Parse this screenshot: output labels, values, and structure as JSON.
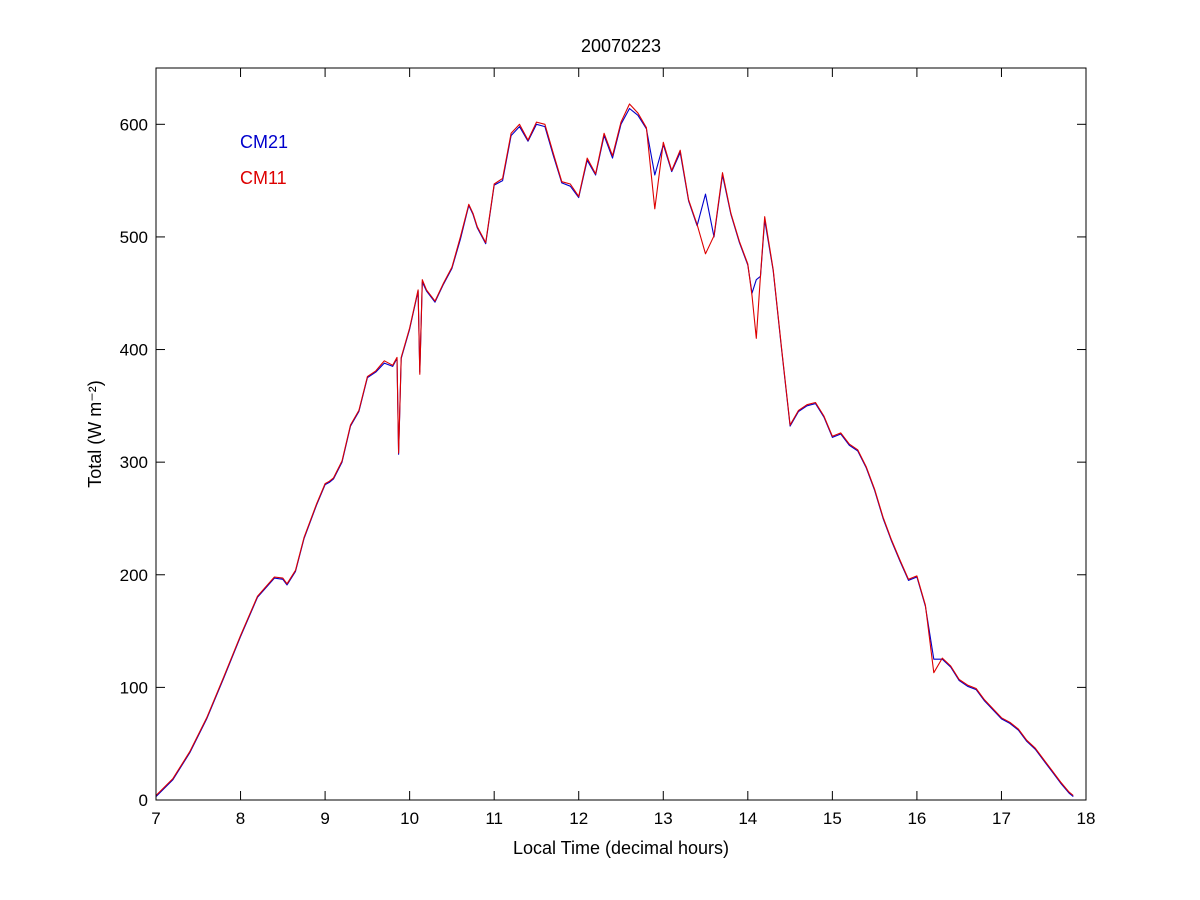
{
  "chart_data": {
    "type": "line",
    "title": "20070223",
    "xlabel": "Local Time (decimal hours)",
    "ylabel": "Total (W m⁻²)",
    "xlim": [
      7,
      18
    ],
    "ylim": [
      0,
      650
    ],
    "xticks": [
      7,
      8,
      9,
      10,
      11,
      12,
      13,
      14,
      15,
      16,
      17,
      18
    ],
    "yticks": [
      0,
      100,
      200,
      300,
      400,
      500,
      600
    ],
    "xtick_labels": [
      "7",
      "8",
      "9",
      "10",
      "11",
      "12",
      "13",
      "14",
      "15",
      "16",
      "17",
      "18"
    ],
    "ytick_labels": [
      "0",
      "100",
      "200",
      "300",
      "400",
      "500",
      "600"
    ],
    "grid": false,
    "legend_position": "top-left",
    "series": [
      {
        "name": "CM21",
        "color": "#0000cc",
        "x": [
          7.0,
          7.2,
          7.4,
          7.6,
          7.8,
          8.0,
          8.2,
          8.4,
          8.5,
          8.55,
          8.65,
          8.75,
          8.9,
          9.0,
          9.05,
          9.1,
          9.2,
          9.3,
          9.4,
          9.5,
          9.6,
          9.7,
          9.8,
          9.85,
          9.87,
          9.9,
          10.0,
          10.1,
          10.12,
          10.15,
          10.2,
          10.3,
          10.4,
          10.5,
          10.6,
          10.7,
          10.75,
          10.8,
          10.9,
          11.0,
          11.1,
          11.2,
          11.3,
          11.4,
          11.5,
          11.6,
          11.7,
          11.8,
          11.9,
          12.0,
          12.1,
          12.2,
          12.3,
          12.4,
          12.5,
          12.6,
          12.7,
          12.8,
          12.9,
          13.0,
          13.1,
          13.2,
          13.3,
          13.4,
          13.5,
          13.6,
          13.7,
          13.8,
          13.9,
          14.0,
          14.05,
          14.1,
          14.15,
          14.2,
          14.3,
          14.4,
          14.5,
          14.6,
          14.7,
          14.8,
          14.9,
          15.0,
          15.1,
          15.2,
          15.3,
          15.4,
          15.5,
          15.6,
          15.7,
          15.8,
          15.9,
          16.0,
          16.1,
          16.2,
          16.3,
          16.4,
          16.5,
          16.6,
          16.7,
          16.8,
          16.9,
          17.0,
          17.1,
          17.2,
          17.3,
          17.4,
          17.5,
          17.6,
          17.7,
          17.8,
          17.85
        ],
        "values": [
          3,
          18,
          42,
          72,
          108,
          145,
          180,
          197,
          196,
          191,
          203,
          232,
          262,
          280,
          282,
          285,
          300,
          332,
          345,
          375,
          380,
          388,
          385,
          392,
          307,
          392,
          418,
          452,
          380,
          460,
          452,
          442,
          458,
          472,
          498,
          528,
          520,
          508,
          494,
          546,
          550,
          590,
          598,
          585,
          600,
          598,
          572,
          548,
          545,
          535,
          568,
          555,
          590,
          570,
          600,
          614,
          608,
          596,
          555,
          582,
          558,
          575,
          532,
          510,
          538,
          500,
          555,
          520,
          495,
          475,
          450,
          462,
          465,
          515,
          470,
          400,
          332,
          345,
          350,
          352,
          340,
          322,
          325,
          315,
          310,
          295,
          275,
          250,
          230,
          212,
          195,
          198,
          172,
          125,
          125,
          118,
          106,
          101,
          98,
          88,
          80,
          72,
          68,
          62,
          52,
          45,
          35,
          25,
          15,
          6,
          3
        ]
      },
      {
        "name": "CM11",
        "color": "#dd0000",
        "x": [
          7.0,
          7.2,
          7.4,
          7.6,
          7.8,
          8.0,
          8.2,
          8.4,
          8.5,
          8.55,
          8.65,
          8.75,
          8.9,
          9.0,
          9.05,
          9.1,
          9.2,
          9.3,
          9.4,
          9.5,
          9.6,
          9.7,
          9.8,
          9.85,
          9.87,
          9.9,
          10.0,
          10.1,
          10.12,
          10.15,
          10.2,
          10.3,
          10.4,
          10.5,
          10.6,
          10.7,
          10.75,
          10.8,
          10.9,
          11.0,
          11.1,
          11.2,
          11.3,
          11.4,
          11.5,
          11.6,
          11.7,
          11.8,
          11.9,
          12.0,
          12.1,
          12.2,
          12.3,
          12.4,
          12.5,
          12.6,
          12.7,
          12.8,
          12.9,
          13.0,
          13.1,
          13.2,
          13.3,
          13.4,
          13.5,
          13.6,
          13.7,
          13.8,
          13.9,
          14.0,
          14.05,
          14.1,
          14.15,
          14.2,
          14.3,
          14.4,
          14.5,
          14.6,
          14.7,
          14.8,
          14.9,
          15.0,
          15.1,
          15.2,
          15.3,
          15.4,
          15.5,
          15.6,
          15.7,
          15.8,
          15.9,
          16.0,
          16.1,
          16.2,
          16.3,
          16.4,
          16.5,
          16.6,
          16.7,
          16.8,
          16.9,
          17.0,
          17.1,
          17.2,
          17.3,
          17.4,
          17.5,
          17.6,
          17.7,
          17.8,
          17.85
        ],
        "values": [
          4,
          19,
          43,
          73,
          109,
          146,
          181,
          198,
          197,
          192,
          204,
          233,
          263,
          281,
          283,
          286,
          301,
          333,
          346,
          376,
          381,
          390,
          386,
          393,
          308,
          393,
          419,
          453,
          378,
          462,
          453,
          443,
          459,
          473,
          500,
          529,
          521,
          509,
          495,
          547,
          552,
          592,
          600,
          586,
          602,
          600,
          574,
          549,
          547,
          536,
          570,
          556,
          592,
          572,
          602,
          618,
          610,
          597,
          525,
          584,
          559,
          577,
          533,
          511,
          485,
          501,
          557,
          521,
          496,
          476,
          448,
          410,
          466,
          518,
          471,
          401,
          333,
          346,
          351,
          353,
          341,
          323,
          326,
          316,
          311,
          296,
          276,
          251,
          231,
          213,
          196,
          199,
          173,
          113,
          126,
          119,
          107,
          102,
          99,
          89,
          81,
          73,
          69,
          63,
          53,
          46,
          36,
          26,
          16,
          7,
          4
        ]
      }
    ]
  }
}
